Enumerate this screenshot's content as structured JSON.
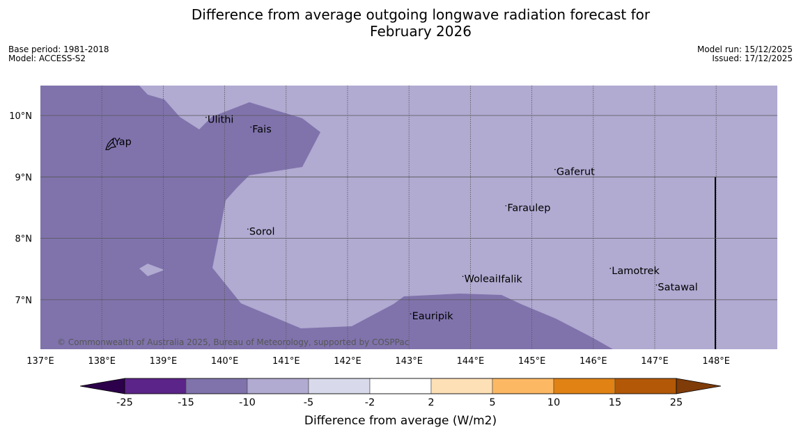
{
  "title_line1": "Difference from average outgoing longwave radiation forecast for",
  "title_line2": "February 2026",
  "base_period": "Base period: 1981-2018",
  "model": "Model: ACCESS-S2",
  "model_run": "Model run: 15/12/2025",
  "issued": "Issued: 17/12/2025",
  "copyright": "© Commonwealth of Australia 2025, Bureau of Meteorology, supported by COSPPac",
  "lon_labels": [
    "137°E",
    "138°E",
    "139°E",
    "140°E",
    "141°E",
    "142°E",
    "143°E",
    "144°E",
    "145°E",
    "146°E",
    "147°E",
    "148°E"
  ],
  "lat_labels": [
    "10°N",
    "9°N",
    "8°N",
    "7°N"
  ],
  "places": [
    {
      "name": "Yap",
      "lon": 138.2,
      "lat": 9.52
    },
    {
      "name": "Ulithi",
      "lon": 139.72,
      "lat": 9.88
    },
    {
      "name": "Fais",
      "lon": 140.45,
      "lat": 9.72
    },
    {
      "name": "Gaferut",
      "lon": 145.4,
      "lat": 9.03
    },
    {
      "name": "Faraulep",
      "lon": 144.6,
      "lat": 8.44
    },
    {
      "name": "Sorol",
      "lon": 140.4,
      "lat": 8.06
    },
    {
      "name": "Woleai",
      "lon": 143.9,
      "lat": 7.29
    },
    {
      "name": "Ifalik",
      "lon": 144.45,
      "lat": 7.28
    },
    {
      "name": "Lamotrek",
      "lon": 146.3,
      "lat": 7.42
    },
    {
      "name": "Satawal",
      "lon": 147.05,
      "lat": 7.15
    },
    {
      "name": "Eauripik",
      "lon": 143.05,
      "lat": 6.68
    }
  ],
  "colorbar": {
    "label": "Difference from average (W/m2)",
    "ticks": [
      "-25",
      "-15",
      "-10",
      "-5",
      "-2",
      "2",
      "5",
      "10",
      "15",
      "25"
    ],
    "colors": [
      "#5b2488",
      "#8073ac",
      "#b1aad1",
      "#d8daeb",
      "#ffffff",
      "#fee0b6",
      "#fdb863",
      "#e08214",
      "#b35806"
    ],
    "under_color": "#2d004b",
    "over_color": "#7f3b08"
  },
  "field_colors": {
    "band_15_10": "#8073ac",
    "band_10_5": "#b1aad1",
    "grid": "#555555",
    "land": "#000000"
  }
}
